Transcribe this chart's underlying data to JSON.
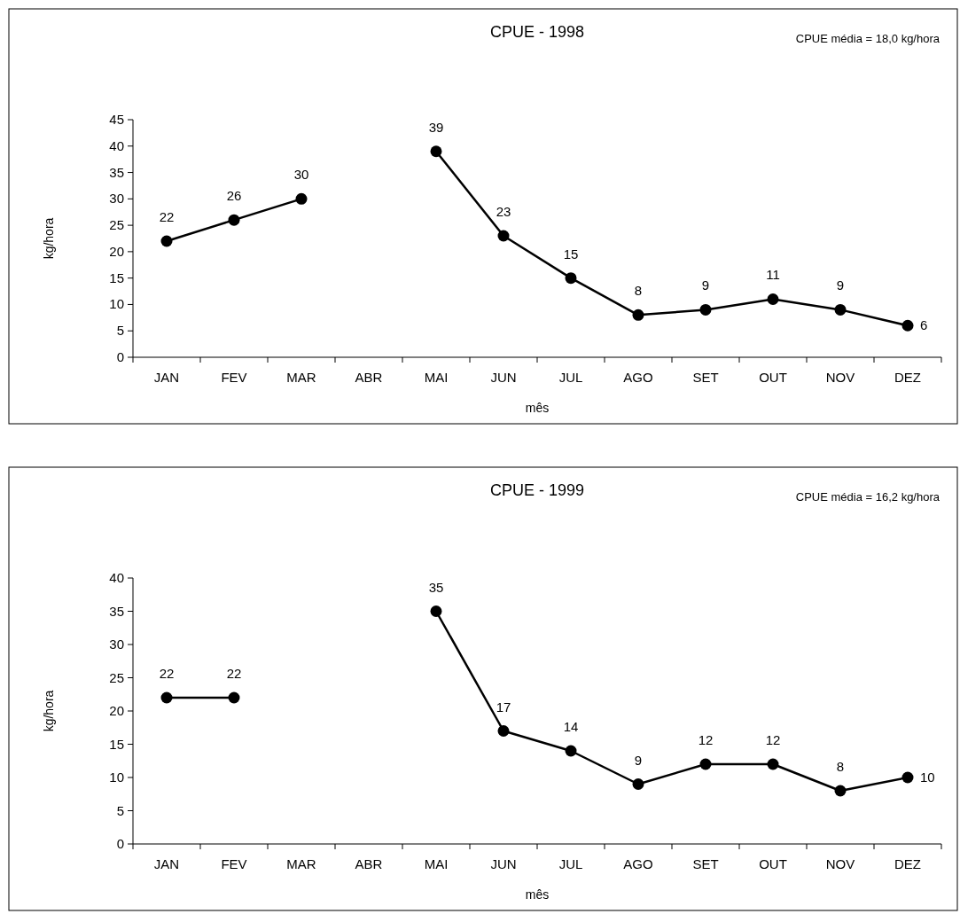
{
  "chart_data": [
    {
      "type": "line",
      "title": "CPUE - 1998",
      "xlabel": "mês",
      "ylabel": "kg/hora",
      "annotations": [
        "CPUE média = 18,0 kg/hora"
      ],
      "categories": [
        "JAN",
        "FEV",
        "MAR",
        "ABR",
        "MAI",
        "JUN",
        "JUL",
        "AGO",
        "SET",
        "OUT",
        "NOV",
        "DEZ"
      ],
      "series": [
        {
          "color": "#000000",
          "values": [
            22,
            26,
            30,
            null,
            39,
            23,
            15,
            8,
            9,
            11,
            9,
            6
          ]
        }
      ],
      "ylim": [
        0,
        45
      ],
      "yticks": [
        0,
        5,
        10,
        15,
        20,
        25,
        30,
        35,
        40,
        45
      ],
      "grid": false,
      "marker": "circle",
      "line_style": "solid",
      "data_labels": true
    },
    {
      "type": "line",
      "title": "CPUE - 1999",
      "xlabel": "mês",
      "ylabel": "kg/hora",
      "annotations": [
        "CPUE média = 16,2 kg/hora"
      ],
      "categories": [
        "JAN",
        "FEV",
        "MAR",
        "ABR",
        "MAI",
        "JUN",
        "JUL",
        "AGO",
        "SET",
        "OUT",
        "NOV",
        "DEZ"
      ],
      "series": [
        {
          "color": "#000000",
          "values": [
            22,
            22,
            null,
            null,
            35,
            17,
            14,
            9,
            12,
            12,
            8,
            10
          ]
        }
      ],
      "ylim": [
        0,
        40
      ],
      "yticks": [
        0,
        5,
        10,
        15,
        20,
        25,
        30,
        35,
        40
      ],
      "grid": false,
      "marker": "circle",
      "line_style": "solid",
      "data_labels": true
    }
  ]
}
